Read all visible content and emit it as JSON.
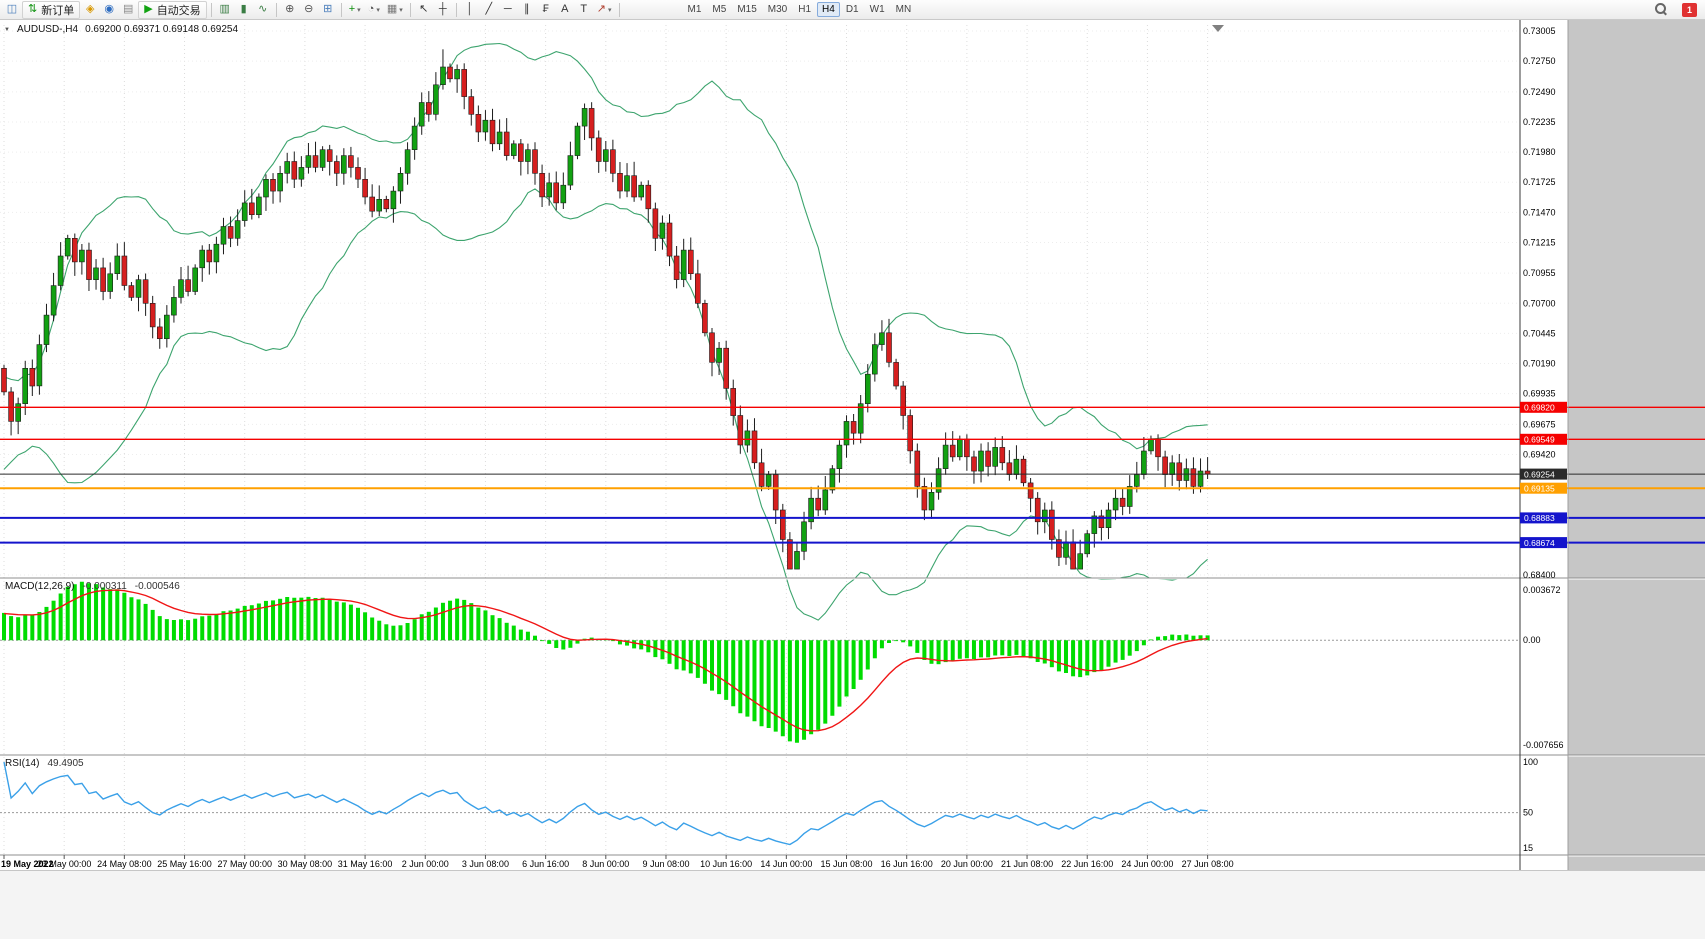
{
  "toolbar": {
    "items": [
      {
        "type": "btn",
        "name": "terminal-chart-button",
        "glyph": "◫",
        "color": "#4a7ebb"
      },
      {
        "type": "btn",
        "name": "new-order-button",
        "glyph": "⇅",
        "color": "#0b8f0b",
        "label": "新订单"
      },
      {
        "type": "btn",
        "name": "favorites-button",
        "glyph": "◈",
        "color": "#d99800"
      },
      {
        "type": "btn",
        "name": "accounts-button",
        "glyph": "◉",
        "color": "#2d6cc0"
      },
      {
        "type": "btn",
        "name": "history-button",
        "glyph": "▤",
        "color": "#8a8a8a"
      },
      {
        "type": "btn",
        "name": "autotrade-button",
        "glyph": "▶",
        "color": "#12a312",
        "label": "自动交易"
      },
      {
        "type": "sep"
      },
      {
        "type": "btn",
        "name": "bar-chart-mode-button",
        "glyph": "▥",
        "color": "#3a7d44"
      },
      {
        "type": "btn",
        "name": "candlestick-mode-button",
        "glyph": "▮",
        "color": "#3a7d44"
      },
      {
        "type": "btn",
        "name": "line-chart-mode-button",
        "glyph": "∿",
        "color": "#3a7d44"
      },
      {
        "type": "sep"
      },
      {
        "type": "btn",
        "name": "zoom-in-button",
        "glyph": "⊕",
        "color": "#555555"
      },
      {
        "type": "btn",
        "name": "zoom-out-button",
        "glyph": "⊖",
        "color": "#555555"
      },
      {
        "type": "btn",
        "name": "tile-windows-button",
        "glyph": "⊞",
        "color": "#4a7ebb"
      },
      {
        "type": "sep"
      },
      {
        "type": "btn",
        "name": "new-chart-button",
        "glyph": "+",
        "color": "#0b8f0b",
        "dropdown": true
      },
      {
        "type": "btn",
        "name": "periods-button",
        "glyph": "◔",
        "color": "#555555",
        "dropdown": true
      },
      {
        "type": "btn",
        "name": "templates-button",
        "glyph": "▦",
        "color": "#777777",
        "dropdown": true
      },
      {
        "type": "sep"
      },
      {
        "type": "btn",
        "name": "cursor-button",
        "glyph": "↖",
        "color": "#333333"
      },
      {
        "type": "btn",
        "name": "crosshair-button",
        "glyph": "┼",
        "color": "#333333"
      },
      {
        "type": "sep"
      },
      {
        "type": "btn",
        "name": "vertical-line-button",
        "glyph": "│",
        "color": "#333333"
      },
      {
        "type": "btn",
        "name": "trendline-button",
        "glyph": "╱",
        "color": "#333333"
      },
      {
        "type": "btn",
        "name": "horizontal-line-button",
        "glyph": "─",
        "color": "#333333"
      },
      {
        "type": "btn",
        "name": "equidistant-channel-button",
        "glyph": "∥",
        "color": "#333333"
      },
      {
        "type": "btn",
        "name": "fibonacci-button",
        "glyph": "₣",
        "color": "#333333"
      },
      {
        "type": "btn",
        "name": "text-button",
        "glyph": "A",
        "color": "#333333"
      },
      {
        "type": "btn",
        "name": "text-label-button",
        "glyph": "T",
        "color": "#333333"
      },
      {
        "type": "btn",
        "name": "arrows-button",
        "glyph": "↗",
        "color": "#b04030",
        "dropdown": true
      },
      {
        "type": "sep"
      }
    ],
    "timeframes": {
      "options": [
        "M1",
        "M5",
        "M15",
        "M30",
        "H1",
        "H4",
        "D1",
        "W1",
        "MN"
      ],
      "active": "H4"
    },
    "notification_count": "1"
  },
  "chart": {
    "symbol_period": "AUDUSD-,H4",
    "ohlc": "0.69200 0.69371 0.69148 0.69254"
  },
  "chart_data": {
    "type": "candlestick",
    "symbol": "AUDUSD",
    "period": "H4",
    "first_open": 0.7015,
    "closes": [
      0.6995,
      0.697,
      0.6985,
      0.7015,
      0.7,
      0.7035,
      0.706,
      0.7085,
      0.711,
      0.7125,
      0.7105,
      0.7115,
      0.709,
      0.71,
      0.708,
      0.7095,
      0.711,
      0.7085,
      0.7075,
      0.709,
      0.707,
      0.705,
      0.704,
      0.706,
      0.7075,
      0.709,
      0.708,
      0.71,
      0.7115,
      0.7105,
      0.712,
      0.7135,
      0.7125,
      0.714,
      0.7155,
      0.7145,
      0.716,
      0.7175,
      0.7165,
      0.718,
      0.719,
      0.7175,
      0.7185,
      0.7195,
      0.7185,
      0.72,
      0.719,
      0.718,
      0.7195,
      0.7185,
      0.7175,
      0.716,
      0.7148,
      0.7158,
      0.715,
      0.7165,
      0.718,
      0.72,
      0.722,
      0.724,
      0.723,
      0.7255,
      0.727,
      0.726,
      0.7268,
      0.7245,
      0.723,
      0.7215,
      0.7225,
      0.7205,
      0.7215,
      0.7195,
      0.7205,
      0.719,
      0.72,
      0.718,
      0.716,
      0.7172,
      0.7155,
      0.717,
      0.7195,
      0.722,
      0.7235,
      0.721,
      0.719,
      0.72,
      0.718,
      0.7165,
      0.7178,
      0.716,
      0.717,
      0.715,
      0.7125,
      0.7138,
      0.711,
      0.709,
      0.7115,
      0.7095,
      0.707,
      0.7045,
      0.702,
      0.7032,
      0.6998,
      0.6975,
      0.695,
      0.6962,
      0.6935,
      0.6915,
      0.6925,
      0.6895,
      0.687,
      0.6845,
      0.686,
      0.6885,
      0.6905,
      0.6895,
      0.6912,
      0.693,
      0.695,
      0.697,
      0.696,
      0.6985,
      0.701,
      0.7035,
      0.7045,
      0.702,
      0.7,
      0.6975,
      0.6945,
      0.6915,
      0.6895,
      0.691,
      0.693,
      0.695,
      0.694,
      0.6955,
      0.694,
      0.6928,
      0.6945,
      0.6932,
      0.6948,
      0.6935,
      0.6925,
      0.6938,
      0.6918,
      0.6905,
      0.6885,
      0.6895,
      0.687,
      0.6855,
      0.6868,
      0.6845,
      0.6858,
      0.6875,
      0.689,
      0.688,
      0.6895,
      0.6905,
      0.6898,
      0.6915,
      0.6925,
      0.6945,
      0.6955,
      0.694,
      0.6925,
      0.6935,
      0.692,
      0.693,
      0.6915,
      0.6928,
      0.69254
    ],
    "warmup_closes": [
      0.6895,
      0.69,
      0.6905,
      0.691,
      0.6915,
      0.692,
      0.6925,
      0.693,
      0.6935,
      0.694,
      0.6945,
      0.695,
      0.6955,
      0.696,
      0.6965,
      0.697,
      0.6972,
      0.6975,
      0.6978,
      0.698,
      0.6982,
      0.6984,
      0.6986,
      0.6988,
      0.699,
      0.6992
    ],
    "special_wicks": [
      {
        "index": 111,
        "low": 0.6848
      },
      {
        "index": 62,
        "high": 0.7285
      }
    ],
    "clamp": {
      "high": 0.7288,
      "low": 0.68455
    },
    "price_axis": {
      "max": 0.73005,
      "min": 0.684,
      "labels": [
        "0.73005",
        "0.72750",
        "0.72490",
        "0.72235",
        "0.71980",
        "0.71725",
        "0.71470",
        "0.71215",
        "0.70955",
        "0.70700",
        "0.70445",
        "0.70190",
        "0.69935",
        "0.69675",
        "0.69420",
        "0.68400"
      ]
    },
    "hlines": [
      {
        "price": 0.6982,
        "color": "#f50000",
        "thickness": 1.3,
        "label": "0.69820"
      },
      {
        "price": 0.69549,
        "color": "#f50000",
        "thickness": 1.3,
        "label": "0.69549"
      },
      {
        "price": 0.69254,
        "color": "#2a2a2a",
        "thickness": 1,
        "label": "0.69254"
      },
      {
        "price": 0.69135,
        "color": "#ffa000",
        "thickness": 2,
        "label": "0.69135"
      },
      {
        "price": 0.68883,
        "color": "#1414cc",
        "thickness": 2,
        "label": "0.68883"
      },
      {
        "price": 0.68674,
        "color": "#1414cc",
        "thickness": 2,
        "label": "0.68674"
      }
    ],
    "date_labels": [
      "19 May 2022",
      "23 May 00:00",
      "24 May 08:00",
      "25 May 16:00",
      "27 May 00:00",
      "30 May 08:00",
      "31 May 16:00",
      "2 Jun 00:00",
      "3 Jun 08:00",
      "6 Jun 16:00",
      "8 Jun 00:00",
      "9 Jun 08:00",
      "10 Jun 16:00",
      "14 Jun 00:00",
      "15 Jun 08:00",
      "16 Jun 16:00",
      "20 Jun 00:00",
      "21 Jun 08:00",
      "22 Jun 16:00",
      "24 Jun 00:00",
      "27 Jun 08:00"
    ],
    "bollinger": {
      "period": 20,
      "deviations": 2,
      "color": "#3da46e"
    },
    "macd": {
      "title": "MACD(12,26,9)",
      "value_main": "-0.000311",
      "value_signal": "-0.000546",
      "fast": 12,
      "slow": 26,
      "signal": 9,
      "axis_max": 0.003672,
      "axis_min": -0.007656,
      "axis_labels": [
        "0.003672",
        "0.00",
        "-0.007656"
      ],
      "histogram_color": "#00dc00",
      "signal_color": "#f01515"
    },
    "rsi": {
      "title": "RSI(14)",
      "value": "49.4905",
      "period": 14,
      "axis_max": 100,
      "axis_min": 15,
      "axis_labels": [
        "100",
        "50",
        "15"
      ],
      "level": 50,
      "line_color": "#3aa0e8"
    },
    "candle_up_color": "#12a112",
    "candle_down_color": "#d61f1f"
  }
}
